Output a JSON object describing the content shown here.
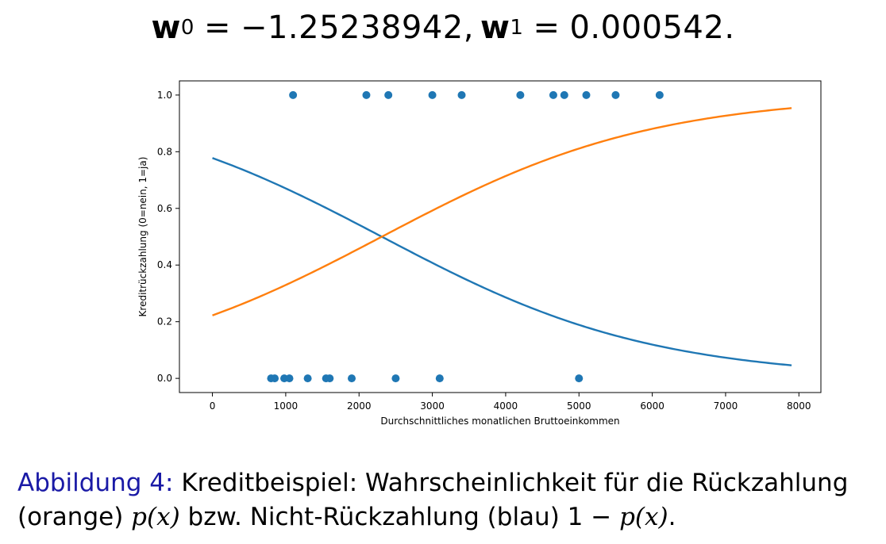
{
  "formula": {
    "w0_symbol": "w",
    "w0_sub": "0",
    "eq": "=",
    "w0_value": "−1.25238942,",
    "w1_symbol": "w",
    "w1_sub": "1",
    "w1_value": "0.000542."
  },
  "chart_data": {
    "type": "scatter",
    "xlabel": "Durchschnittliches monatlichen Bruttoeinkommen",
    "ylabel": "Kreditrückzahlung (0=nein, 1=ja)",
    "xlim": [
      -450,
      8300
    ],
    "ylim": [
      -0.05,
      1.05
    ],
    "x_ticks": [
      0,
      1000,
      2000,
      3000,
      4000,
      5000,
      6000,
      7000,
      8000
    ],
    "y_ticks": [
      0.0,
      0.2,
      0.4,
      0.6,
      0.8,
      1.0
    ],
    "x_tick_labels": [
      "0",
      "1000",
      "2000",
      "3000",
      "4000",
      "5000",
      "6000",
      "7000",
      "8000"
    ],
    "y_tick_labels": [
      "0.0",
      "0.2",
      "0.4",
      "0.6",
      "0.8",
      "1.0"
    ],
    "grid": false,
    "colors": {
      "points": "#1f77b4",
      "blue_curve": "#1f77b4",
      "orange_curve": "#ff7f0e"
    },
    "points": [
      {
        "x": 800,
        "y": 0
      },
      {
        "x": 850,
        "y": 0
      },
      {
        "x": 980,
        "y": 0
      },
      {
        "x": 1050,
        "y": 0
      },
      {
        "x": 1300,
        "y": 0
      },
      {
        "x": 1550,
        "y": 0
      },
      {
        "x": 1600,
        "y": 0
      },
      {
        "x": 1900,
        "y": 0
      },
      {
        "x": 2500,
        "y": 0
      },
      {
        "x": 3100,
        "y": 0
      },
      {
        "x": 5000,
        "y": 0
      },
      {
        "x": 1100,
        "y": 1
      },
      {
        "x": 2100,
        "y": 1
      },
      {
        "x": 2400,
        "y": 1
      },
      {
        "x": 3000,
        "y": 1
      },
      {
        "x": 3400,
        "y": 1
      },
      {
        "x": 4200,
        "y": 1
      },
      {
        "x": 4650,
        "y": 1
      },
      {
        "x": 4800,
        "y": 1
      },
      {
        "x": 5100,
        "y": 1
      },
      {
        "x": 5500,
        "y": 1
      },
      {
        "x": 6100,
        "y": 1
      }
    ],
    "curve_x_range": [
      0,
      7900
    ],
    "model": {
      "w0": -1.25238942,
      "w1": 0.000542
    }
  },
  "caption": {
    "figure_label": "Abbildung 4:",
    "line1_text": " Kreditbeispiel: Wahrscheinlichkeit für die Rückzahlung",
    "line2_a": "(orange) ",
    "line2_px": "p(x)",
    "line2_b": " bzw. Nicht-Rückzahlung (blau) 1 − ",
    "line2_px2": "p(x)",
    "line2_c": "."
  }
}
